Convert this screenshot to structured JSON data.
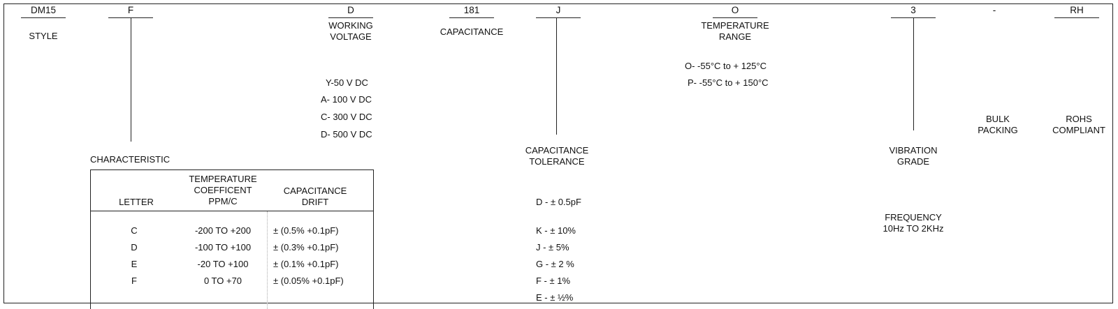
{
  "codes": {
    "style": "DM15",
    "characteristic": "F",
    "voltage": "D",
    "capacitance": "181",
    "tolerance": "J",
    "temperature": "O",
    "vibration": "3",
    "dash": "-",
    "rohs": "RH"
  },
  "labels": {
    "style": "STYLE",
    "voltage": [
      "WORKING",
      "VOLTAGE"
    ],
    "capacitance": "CAPACITANCE",
    "temperature": [
      "TEMPERATURE",
      "RANGE"
    ],
    "characteristic": "CHARACTERISTIC",
    "tolerance": [
      "CAPACITANCE",
      "TOLERANCE"
    ],
    "vibration": [
      "VIBRATION",
      "GRADE"
    ],
    "bulk": [
      "BULK",
      "PACKING"
    ],
    "rohs": [
      "ROHS",
      "COMPLIANT"
    ]
  },
  "voltage_options": [
    "Y-50 V DC",
    "A- 100 V DC",
    "C- 300 V DC",
    "D- 500 V DC"
  ],
  "temperature_options": [
    "O-  -55°C to + 125°C",
    "P- -55°C to + 150°C"
  ],
  "tolerance_options": [
    "D - ± 0.5pF",
    "K - ± 10%",
    "J - ±  5%",
    "G - ± 2 %",
    "F - ± 1%",
    "E - ± ½%"
  ],
  "frequency": [
    "FREQUENCY",
    "10Hz TO 2KHz"
  ],
  "char_table": {
    "headers": {
      "letter": "LETTER",
      "tempco": [
        "TEMPERATURE",
        "COEFFICENT",
        "PPM/C"
      ],
      "drift": [
        "CAPACITANCE",
        "DRIFT"
      ]
    },
    "rows": [
      {
        "letter": "C",
        "tempco": "-200 TO +200",
        "drift": "± (0.5% +0.1pF)"
      },
      {
        "letter": "D",
        "tempco": "-100 TO +100",
        "drift": "± (0.3% +0.1pF)"
      },
      {
        "letter": "E",
        "tempco": "-20 TO +100",
        "drift": "± (0.1% +0.1pF)"
      },
      {
        "letter": "F",
        "tempco": "0 TO +70",
        "drift": "± (0.05% +0.1pF)"
      }
    ]
  }
}
